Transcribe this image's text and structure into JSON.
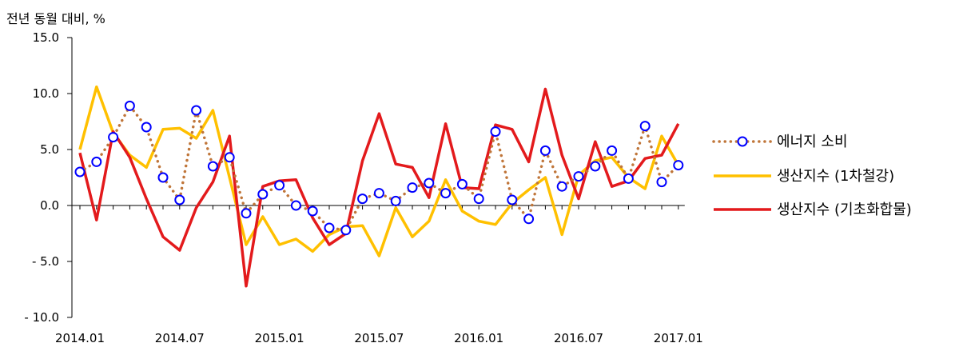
{
  "chart_data": {
    "type": "line",
    "unit_label": "전년 동월 대비, %",
    "ylim": [
      -10,
      15
    ],
    "y_ticks": [
      -10,
      -5,
      0,
      5,
      10,
      15
    ],
    "y_tick_labels": [
      "- 10.0",
      "- 5.0",
      "0.0",
      "5.0",
      "10.0",
      "15.0"
    ],
    "x_ticks": [
      "2014.01",
      "2014.07",
      "2015.01",
      "2015.07",
      "2016.01",
      "2016.07",
      "2017.01"
    ],
    "x": [
      "2014.01",
      "2014.02",
      "2014.03",
      "2014.04",
      "2014.05",
      "2014.06",
      "2014.07",
      "2014.08",
      "2014.09",
      "2014.10",
      "2014.11",
      "2014.12",
      "2015.01",
      "2015.02",
      "2015.03",
      "2015.04",
      "2015.05",
      "2015.06",
      "2015.07",
      "2015.08",
      "2015.09",
      "2015.10",
      "2015.11",
      "2015.12",
      "2016.01",
      "2016.02",
      "2016.03",
      "2016.04",
      "2016.05",
      "2016.06",
      "2016.07",
      "2016.08",
      "2016.09",
      "2016.10",
      "2016.11",
      "2016.12",
      "2017.01"
    ],
    "grid": false,
    "legend_position": "right",
    "series": [
      {
        "name": "에너지 소비",
        "style": "dotted-circle-markers",
        "color": "#C0763A",
        "marker_color": "#0000FF",
        "values": [
          3.0,
          3.9,
          6.1,
          8.9,
          7.0,
          2.5,
          0.5,
          8.5,
          3.5,
          4.3,
          -0.7,
          1.0,
          1.8,
          0.0,
          -0.5,
          -2.0,
          -2.2,
          0.6,
          1.1,
          0.4,
          1.6,
          2.0,
          1.1,
          1.9,
          0.6,
          6.6,
          0.5,
          -1.2,
          4.9,
          1.7,
          2.6,
          3.5,
          4.9,
          2.4,
          7.1,
          2.1,
          3.6
        ]
      },
      {
        "name": "생산지수 (1차철강)",
        "style": "solid",
        "color": "#FFC000",
        "values": [
          5.0,
          10.6,
          6.5,
          4.5,
          3.4,
          6.8,
          6.9,
          6.0,
          8.5,
          2.5,
          -3.5,
          -1.0,
          -3.5,
          -3.0,
          -4.1,
          -2.6,
          -1.9,
          -1.8,
          -4.5,
          -0.2,
          -2.8,
          -1.4,
          2.3,
          -0.5,
          -1.4,
          -1.7,
          0.2,
          1.4,
          2.5,
          -2.6,
          2.7,
          4.0,
          4.3,
          2.5,
          1.5,
          6.2,
          3.6
        ]
      },
      {
        "name": "생산지수 (기초화합물)",
        "style": "solid",
        "color": "#E31A1C",
        "values": [
          4.7,
          -1.3,
          6.6,
          4.3,
          0.6,
          -2.8,
          -4.0,
          -0.2,
          2.1,
          6.2,
          -7.2,
          1.7,
          2.2,
          2.3,
          -1.1,
          -3.5,
          -2.5,
          4.0,
          8.2,
          3.7,
          3.4,
          0.7,
          7.3,
          1.6,
          1.5,
          7.2,
          6.8,
          3.9,
          10.4,
          4.5,
          0.6,
          5.7,
          1.7,
          2.2,
          4.2,
          4.5,
          7.3
        ]
      }
    ]
  }
}
